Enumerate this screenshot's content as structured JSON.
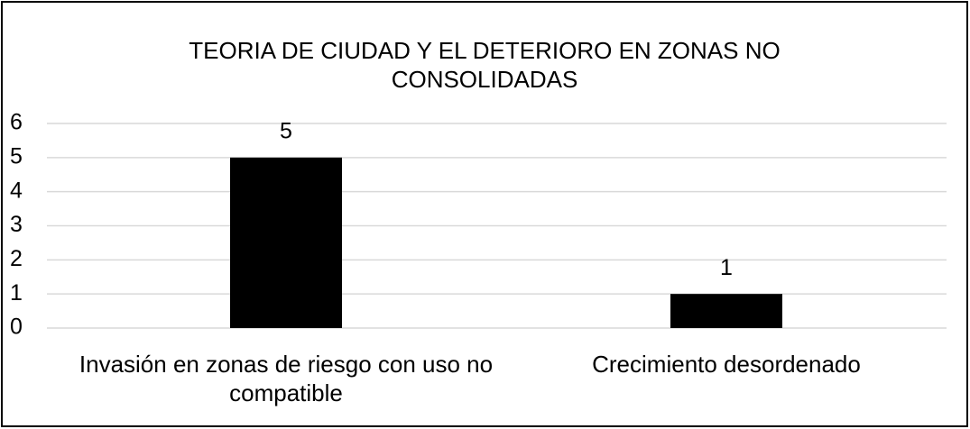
{
  "chart_data": {
    "type": "bar",
    "title": "TEORIA DE CIUDAD Y EL DETERIORO EN ZONAS NO CONSOLIDADAS",
    "categories": [
      "Invasión en zonas de riesgo con uso no compatible",
      "Crecimiento desordenado"
    ],
    "values": [
      5,
      1
    ],
    "color": "#000000",
    "ylim": [
      0,
      6
    ],
    "yticks": [
      0,
      1,
      2,
      3,
      4,
      5,
      6
    ],
    "grid": true
  }
}
